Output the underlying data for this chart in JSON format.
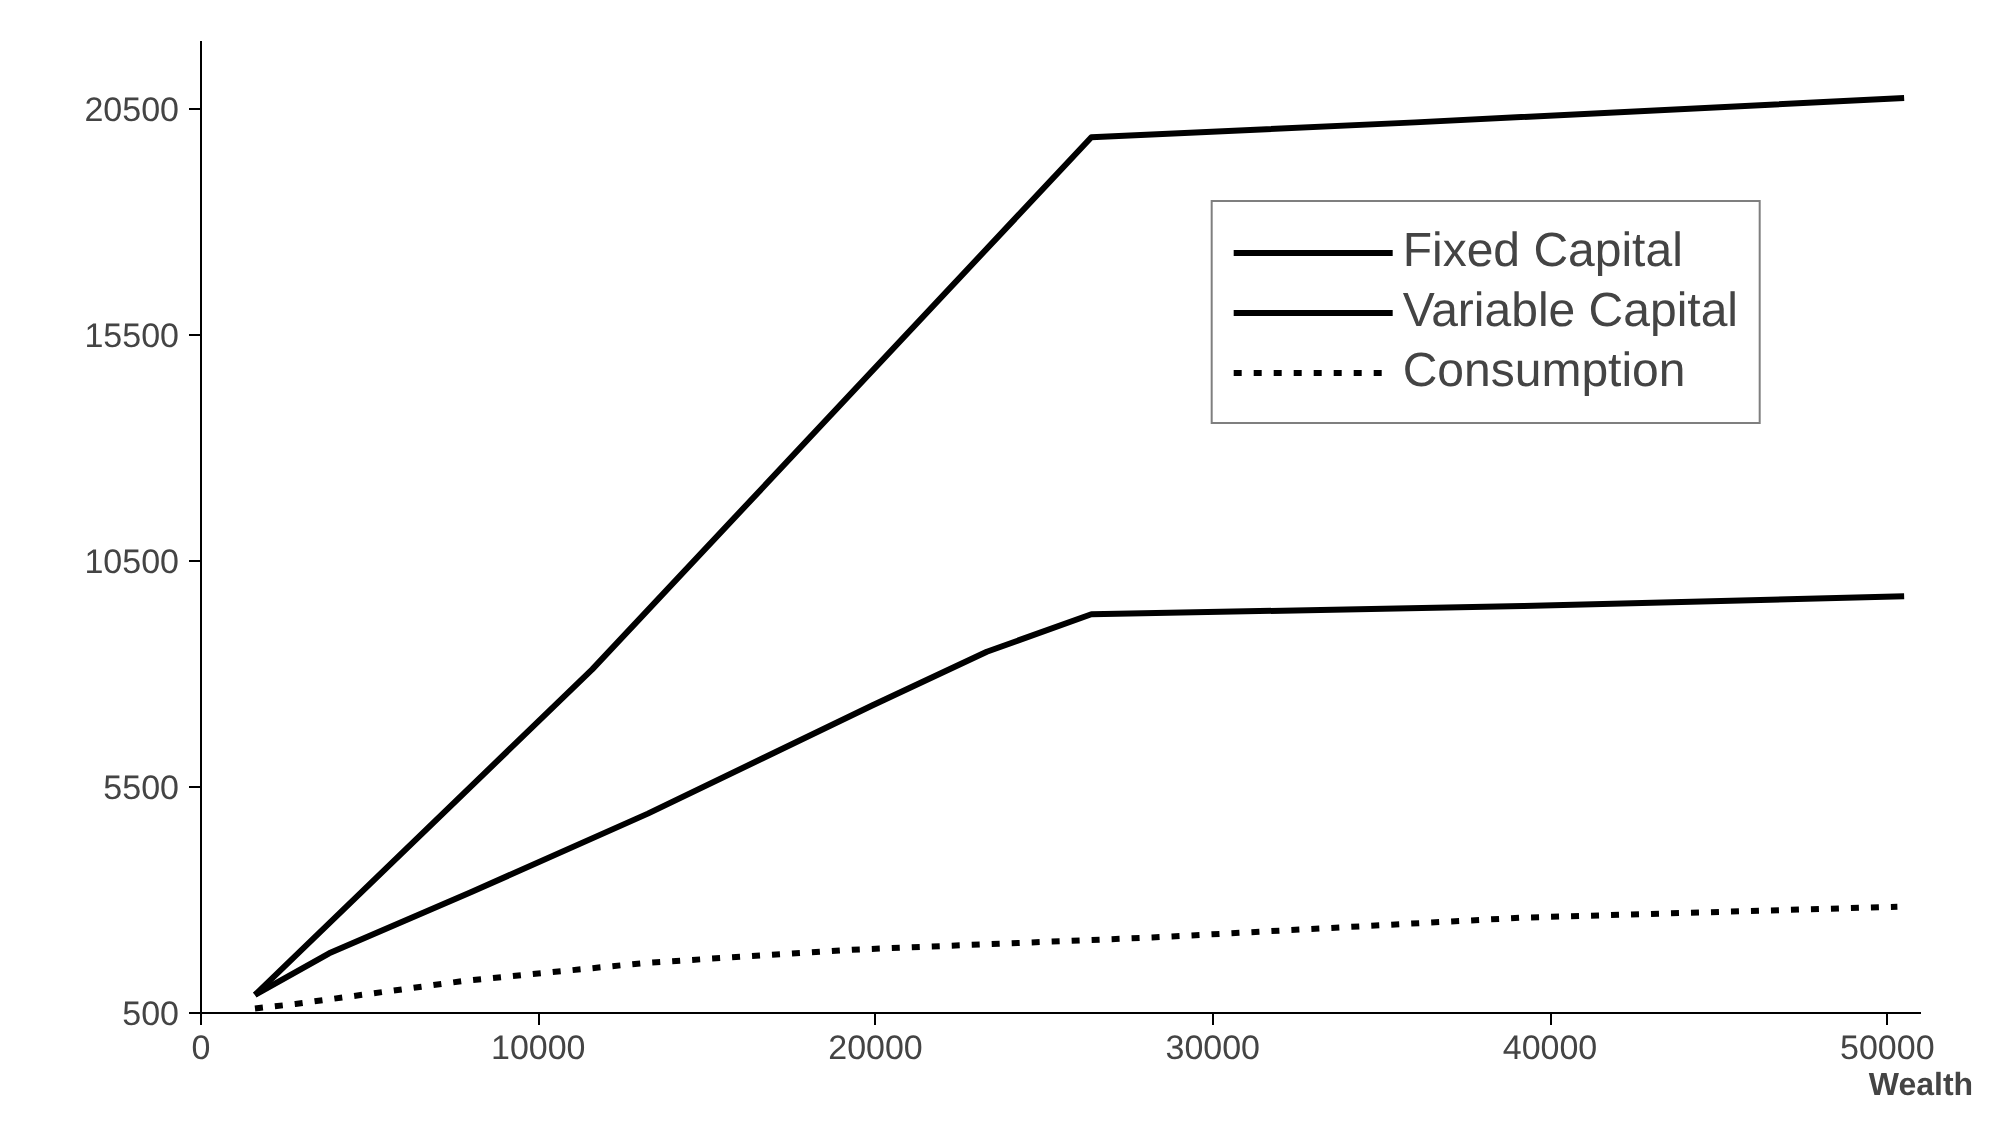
{
  "chart_data": {
    "type": "line",
    "xlabel": "Wealth",
    "xlim": [
      0,
      51000
    ],
    "xticks": [
      0,
      10000,
      20000,
      30000,
      40000,
      50000
    ],
    "ylim": [
      500,
      22000
    ],
    "yticks": [
      500,
      5500,
      10500,
      15500,
      20500
    ],
    "grid": false,
    "legend": "top right",
    "marker": "none",
    "series": [
      {
        "name": "Fixed Capital",
        "color": "#000000",
        "line_style": "solid",
        "x": [
          1600,
          11600,
          26400,
          36000,
          50500
        ],
        "values": [
          900,
          8100,
          19870,
          20200,
          20740
        ]
      },
      {
        "name": "Variable Capital",
        "color": "#000000",
        "line_style": "solid",
        "x": [
          1600,
          3800,
          8000,
          13250,
          19900,
          23300,
          26400,
          39200,
          50500
        ],
        "values": [
          900,
          1820,
          3170,
          4910,
          7300,
          8490,
          9320,
          9500,
          9720
        ]
      },
      {
        "name": "Consumption",
        "color": "#000000",
        "line_style": "dashed",
        "x": [
          1600,
          2800,
          7800,
          13200,
          19300,
          28200,
          39200,
          50300
        ],
        "values": [
          600,
          700,
          1210,
          1610,
          1900,
          2170,
          2610,
          2850
        ]
      }
    ]
  }
}
